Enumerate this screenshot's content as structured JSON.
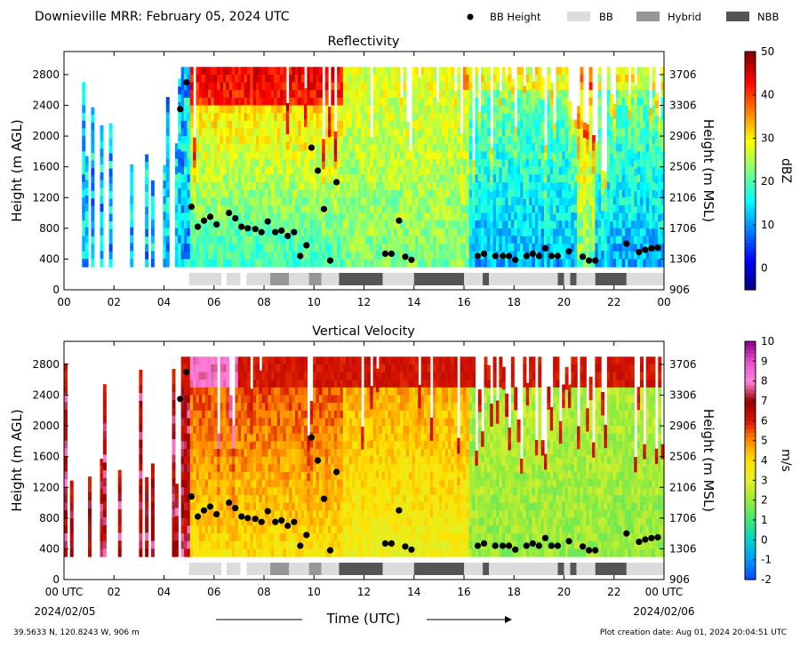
{
  "header": {
    "title": "Downieville MRR:  February 05, 2024 UTC",
    "legend": [
      {
        "label": "BB Height",
        "kind": "marker",
        "color": "#000000"
      },
      {
        "label": "BB",
        "kind": "swatch",
        "color": "#dcdcdc"
      },
      {
        "label": "Hybrid",
        "kind": "swatch",
        "color": "#969696"
      },
      {
        "label": "NBB",
        "kind": "swatch",
        "color": "#555555"
      }
    ]
  },
  "footer": {
    "location": "39.5633 N, 120.8243 W, 906 m",
    "creation": "Plot creation date: Aug 01, 2024 20:04:51 UTC",
    "time_label": "Time (UTC)",
    "start_date": "2024/02/05",
    "end_date": "2024/02/06"
  },
  "chart_data": [
    {
      "type": "heatmap",
      "title": "Reflectivity",
      "ylabel": "Height (m AGL)",
      "y2label": "Height (m MSL)",
      "xlim": [
        0,
        24
      ],
      "ylim": [
        0,
        3100
      ],
      "x_ticks": [
        "00",
        "02",
        "04",
        "06",
        "08",
        "10",
        "12",
        "14",
        "16",
        "18",
        "20",
        "22",
        "00"
      ],
      "y_ticks": [
        0,
        400,
        800,
        1200,
        1600,
        2000,
        2400,
        2800
      ],
      "y2_ticks": [
        906,
        1306,
        1706,
        2106,
        2506,
        2906,
        3306,
        3706
      ],
      "colorbar": {
        "label": "dBZ",
        "min": -5,
        "max": 50,
        "ticks": [
          0,
          10,
          20,
          30,
          40,
          50
        ],
        "colormap": "jet"
      }
    },
    {
      "type": "heatmap",
      "title": "Vertical Velocity",
      "ylabel": "Height (m AGL)",
      "y2label": "Height (m MSL)",
      "xlim": [
        0,
        24
      ],
      "ylim": [
        0,
        3100
      ],
      "x_ticks": [
        "00 UTC",
        "02",
        "04",
        "06",
        "08",
        "10",
        "12",
        "14",
        "16",
        "18",
        "20",
        "22",
        "00 UTC"
      ],
      "y_ticks": [
        0,
        400,
        800,
        1200,
        1600,
        2000,
        2400,
        2800
      ],
      "y2_ticks": [
        906,
        1306,
        1706,
        2106,
        2506,
        2906,
        3306,
        3706
      ],
      "colorbar": {
        "label": "m/s",
        "min": -2,
        "max": 10,
        "ticks": [
          -2,
          -1,
          0,
          1,
          2,
          3,
          4,
          5,
          6,
          7,
          8,
          9,
          10
        ],
        "colormap": "velocity"
      }
    }
  ],
  "bb_heights": [
    [
      4.65,
      2350
    ],
    [
      4.9,
      2700
    ],
    [
      5.1,
      1080
    ],
    [
      5.35,
      820
    ],
    [
      5.6,
      900
    ],
    [
      5.85,
      950
    ],
    [
      6.1,
      850
    ],
    [
      6.6,
      1000
    ],
    [
      6.85,
      930
    ],
    [
      7.1,
      820
    ],
    [
      7.35,
      800
    ],
    [
      7.65,
      790
    ],
    [
      7.9,
      750
    ],
    [
      8.15,
      890
    ],
    [
      8.45,
      750
    ],
    [
      8.7,
      770
    ],
    [
      8.95,
      700
    ],
    [
      9.2,
      750
    ],
    [
      9.45,
      440
    ],
    [
      9.7,
      580
    ],
    [
      9.9,
      1850
    ],
    [
      10.15,
      1550
    ],
    [
      10.4,
      1050
    ],
    [
      10.65,
      380
    ],
    [
      10.9,
      1400
    ],
    [
      12.85,
      470
    ],
    [
      13.1,
      470
    ],
    [
      13.4,
      900
    ],
    [
      13.65,
      430
    ],
    [
      13.9,
      390
    ],
    [
      16.55,
      440
    ],
    [
      16.8,
      470
    ],
    [
      17.25,
      440
    ],
    [
      17.55,
      440
    ],
    [
      17.8,
      440
    ],
    [
      18.05,
      390
    ],
    [
      18.5,
      440
    ],
    [
      18.75,
      470
    ],
    [
      19.0,
      440
    ],
    [
      19.25,
      540
    ],
    [
      19.5,
      440
    ],
    [
      19.75,
      440
    ],
    [
      20.2,
      500
    ],
    [
      20.75,
      430
    ],
    [
      21.0,
      380
    ],
    [
      21.25,
      380
    ],
    [
      22.5,
      600
    ],
    [
      23.0,
      490
    ],
    [
      23.25,
      520
    ],
    [
      23.5,
      540
    ],
    [
      23.75,
      550
    ]
  ],
  "bb_type_bar": [
    {
      "start": 5.0,
      "end": 6.3,
      "type": "BB"
    },
    {
      "start": 6.5,
      "end": 7.05,
      "type": "BB"
    },
    {
      "start": 7.3,
      "end": 8.25,
      "type": "BB"
    },
    {
      "start": 8.25,
      "end": 9.0,
      "type": "Hybrid"
    },
    {
      "start": 9.0,
      "end": 9.8,
      "type": "BB"
    },
    {
      "start": 9.8,
      "end": 10.3,
      "type": "Hybrid"
    },
    {
      "start": 10.3,
      "end": 11.0,
      "type": "BB"
    },
    {
      "start": 11.0,
      "end": 12.75,
      "type": "NBB"
    },
    {
      "start": 12.75,
      "end": 14.0,
      "type": "BB"
    },
    {
      "start": 14.0,
      "end": 16.0,
      "type": "NBB"
    },
    {
      "start": 16.0,
      "end": 16.75,
      "type": "BB"
    },
    {
      "start": 16.75,
      "end": 17.0,
      "type": "NBB"
    },
    {
      "start": 17.0,
      "end": 19.75,
      "type": "BB"
    },
    {
      "start": 19.75,
      "end": 20.0,
      "type": "NBB"
    },
    {
      "start": 20.0,
      "end": 20.25,
      "type": "BB"
    },
    {
      "start": 20.25,
      "end": 20.5,
      "type": "NBB"
    },
    {
      "start": 20.5,
      "end": 21.25,
      "type": "BB"
    },
    {
      "start": 21.25,
      "end": 22.5,
      "type": "NBB"
    },
    {
      "start": 22.5,
      "end": 24.0,
      "type": "BB"
    }
  ]
}
